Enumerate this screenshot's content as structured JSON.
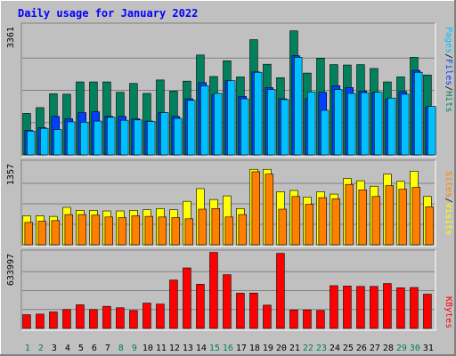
{
  "chart_data": {
    "type": "bar",
    "title": "Daily usage for January 2022",
    "days": [
      "1",
      "2",
      "3",
      "4",
      "5",
      "6",
      "7",
      "8",
      "9",
      "10",
      "11",
      "12",
      "13",
      "14",
      "15",
      "16",
      "17",
      "18",
      "19",
      "20",
      "21",
      "22",
      "23",
      "24",
      "25",
      "26",
      "27",
      "28",
      "29",
      "30",
      "31"
    ],
    "weekend_days": [
      "1",
      "2",
      "8",
      "9",
      "15",
      "16",
      "22",
      "23",
      "29",
      "30"
    ],
    "panels": [
      {
        "axis_max_label": "3361",
        "ymax": 3361,
        "legend": [
          "Pages",
          "/",
          "Files",
          "/",
          "Hits"
        ],
        "series": [
          {
            "name": "Hits",
            "color": "#00805c",
            "values": [
              1080,
              1230,
              1590,
              1580,
              1900,
              1900,
              1900,
              1630,
              1860,
              1600,
              1950,
              1660,
              1920,
              2600,
              2040,
              2450,
              2030,
              3000,
              2360,
              2010,
              3230,
              2130,
              2520,
              2350,
              2340,
              2350,
              2250,
              1900,
              2030,
              2540,
              2080
            ]
          },
          {
            "name": "Files",
            "color": "#0040ff",
            "values": [
              640,
              710,
              1000,
              940,
              1100,
              1120,
              1000,
              1000,
              940,
              880,
              1100,
              1000,
              1460,
              1880,
              1560,
              1930,
              1520,
              2160,
              1750,
              1460,
              2580,
              1460,
              1630,
              1800,
              1750,
              1660,
              1630,
              1450,
              1650,
              2200,
              1250
            ]
          },
          {
            "name": "Pages",
            "color": "#00c0ff",
            "values": [
              620,
              690,
              660,
              860,
              850,
              880,
              980,
              900,
              910,
              870,
              1100,
              950,
              1420,
              1800,
              1600,
              1930,
              1460,
              2150,
              1700,
              1440,
              2540,
              1640,
              1160,
              1700,
              1600,
              1620,
              1630,
              1480,
              1580,
              2150,
              1260
            ]
          }
        ]
      },
      {
        "axis_max_label": "1357",
        "ymax": 1357,
        "legend": [
          "Sites",
          "/",
          "Visits"
        ],
        "series": [
          {
            "name": "Visits",
            "color": "#ffff00",
            "values": [
              480,
              480,
              470,
              620,
              570,
              570,
              560,
              560,
              570,
              580,
              600,
              580,
              720,
              930,
              750,
              810,
              600,
              1250,
              1250,
              880,
              900,
              790,
              880,
              840,
              1100,
              1060,
              970,
              1170,
              1050,
              1220,
              800
            ]
          },
          {
            "name": "Sites",
            "color": "#ff8000",
            "values": [
              370,
              390,
              400,
              500,
              500,
              490,
              460,
              450,
              480,
              470,
              460,
              450,
              430,
              590,
              600,
              460,
              500,
              1210,
              1170,
              590,
              800,
              670,
              780,
              760,
              1000,
              910,
              800,
              980,
              920,
              950,
              630
            ]
          }
        ]
      },
      {
        "axis_max_label": "633997",
        "ymax": 633997,
        "legend": [
          "KBytes"
        ],
        "series": [
          {
            "name": "KBytes",
            "color": "#ff0000",
            "values": [
              115000,
              120000,
              138000,
              158000,
              198000,
              158000,
              185000,
              173000,
              150000,
              212000,
              204000,
              405000,
              507000,
              370000,
              637000,
              450000,
              295000,
              296000,
              195000,
              629000,
              155000,
              155000,
              150000,
              358000,
              355000,
              352000,
              352000,
              376000,
              340000,
              343000,
              287000
            ]
          }
        ]
      }
    ]
  },
  "colors": {
    "background": "#c0c0c0",
    "plot_background": "#c0c0c0",
    "title": "#0000ff",
    "axis_label": "#000000",
    "weekday_label": "#000000",
    "weekend_label": "#00805c",
    "legend_pages": "#00c0ff",
    "legend_files": "#0040ff",
    "legend_hits": "#00805c",
    "legend_sites": "#ff8000",
    "legend_visits": "#ffff00",
    "legend_kbytes": "#ff0000",
    "legend_sep": "#000000"
  }
}
